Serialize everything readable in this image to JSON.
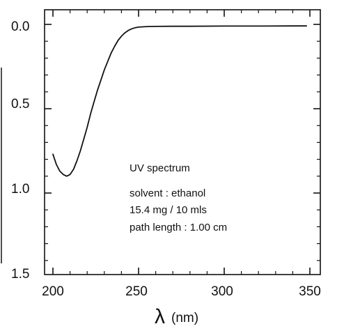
{
  "chart_data": {
    "type": "line",
    "xlabel_symbol": "λ",
    "xlabel_unit": "(nm)",
    "x_ticks": [
      "200",
      "250",
      "300",
      "350"
    ],
    "y_ticks": [
      "0.0",
      "0.5",
      "1.0",
      "1.5"
    ],
    "xlim": [
      195,
      350
    ],
    "ylim": [
      0.0,
      1.55
    ],
    "y_axis_inverted": true,
    "annotation_lines": [
      "UV spectrum",
      "solvent : ethanol",
      "15.4 mg / 10 mls",
      "path length : 1.00 cm"
    ],
    "series": [
      {
        "x": [
          200,
          202,
          204,
          206,
          208,
          210,
          212,
          214,
          216,
          218,
          220,
          222,
          224,
          226,
          228,
          230,
          232,
          234,
          236,
          238,
          240,
          242,
          244,
          246,
          248,
          250,
          255,
          260,
          270,
          280,
          300,
          320,
          340,
          348
        ],
        "y": [
          0.77,
          0.83,
          0.87,
          0.89,
          0.9,
          0.89,
          0.86,
          0.81,
          0.75,
          0.68,
          0.61,
          0.53,
          0.46,
          0.39,
          0.33,
          0.27,
          0.22,
          0.17,
          0.13,
          0.095,
          0.07,
          0.05,
          0.036,
          0.026,
          0.02,
          0.016,
          0.013,
          0.012,
          0.011,
          0.011,
          0.01,
          0.01,
          0.009,
          0.009
        ]
      }
    ],
    "line_color": "#111111"
  }
}
